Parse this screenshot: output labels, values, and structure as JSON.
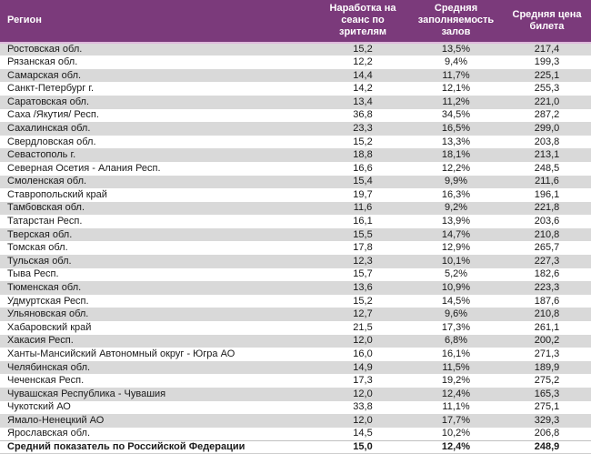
{
  "chart_data": {
    "type": "table",
    "columns": [
      "Регион",
      "Наработка на сеанс по зрителям",
      "Средняя заполняемость залов",
      "Средняя цена билета"
    ],
    "rows": [
      [
        "Ростовская обл.",
        "15,2",
        "13,5%",
        "217,4"
      ],
      [
        "Рязанская обл.",
        "12,2",
        "9,4%",
        "199,3"
      ],
      [
        "Самарская обл.",
        "14,4",
        "11,7%",
        "225,1"
      ],
      [
        "Санкт-Петербург г.",
        "14,2",
        "12,1%",
        "255,3"
      ],
      [
        "Саратовская обл.",
        "13,4",
        "11,2%",
        "221,0"
      ],
      [
        "Саха /Якутия/ Респ.",
        "36,8",
        "34,5%",
        "287,2"
      ],
      [
        "Сахалинская обл.",
        "23,3",
        "16,5%",
        "299,0"
      ],
      [
        "Свердловская обл.",
        "15,2",
        "13,3%",
        "203,8"
      ],
      [
        "Севастополь г.",
        "18,8",
        "18,1%",
        "213,1"
      ],
      [
        "Северная Осетия - Алания Респ.",
        "16,6",
        "12,2%",
        "248,5"
      ],
      [
        "Смоленская обл.",
        "15,4",
        "9,9%",
        "211,6"
      ],
      [
        "Ставропольский край",
        "19,7",
        "16,3%",
        "196,1"
      ],
      [
        "Тамбовская обл.",
        "11,6",
        "9,2%",
        "221,8"
      ],
      [
        "Татарстан Респ.",
        "16,1",
        "13,9%",
        "203,6"
      ],
      [
        "Тверская обл.",
        "15,5",
        "14,7%",
        "210,8"
      ],
      [
        "Томская обл.",
        "17,8",
        "12,9%",
        "265,7"
      ],
      [
        "Тульская обл.",
        "12,3",
        "10,1%",
        "227,3"
      ],
      [
        "Тыва Респ.",
        "15,7",
        "5,2%",
        "182,6"
      ],
      [
        "Тюменская обл.",
        "13,6",
        "10,9%",
        "223,3"
      ],
      [
        "Удмуртская Респ.",
        "15,2",
        "14,5%",
        "187,6"
      ],
      [
        "Ульяновская обл.",
        "12,7",
        "9,6%",
        "210,8"
      ],
      [
        "Хабаровский край",
        "21,5",
        "17,3%",
        "261,1"
      ],
      [
        "Хакасия Респ.",
        "12,0",
        "6,8%",
        "200,2"
      ],
      [
        "Ханты-Мансийский Автономный округ - Югра АО",
        "16,0",
        "16,1%",
        "271,3"
      ],
      [
        "Челябинская обл.",
        "14,9",
        "11,5%",
        "189,9"
      ],
      [
        "Чеченская Респ.",
        "17,3",
        "19,2%",
        "275,2"
      ],
      [
        "Чувашская Республика - Чувашия",
        "12,0",
        "12,4%",
        "165,3"
      ],
      [
        "Чукотский АО",
        "33,8",
        "11,1%",
        "275,1"
      ],
      [
        "Ямало-Ненецкий АО",
        "12,0",
        "17,7%",
        "329,3"
      ],
      [
        "Ярославская обл.",
        "14,5",
        "10,2%",
        "206,8"
      ]
    ],
    "total_row": [
      "Средний показатель по Российской Федерации",
      "15,0",
      "12,4%",
      "248,9"
    ]
  },
  "colors": {
    "header_bg": "#7B3A7B",
    "header_text": "#FFFFFF",
    "stripe_row": "#D9D9D9",
    "white_row": "#FFFFFF",
    "header_bottom_border": "#DEB9DC",
    "body_text": "#1A1A1A",
    "total_row_border": "#C0C0C0"
  }
}
